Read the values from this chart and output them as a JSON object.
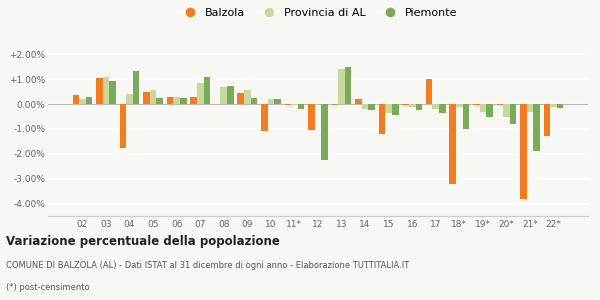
{
  "years": [
    "02",
    "03",
    "04",
    "05",
    "06",
    "07",
    "08",
    "09",
    "10",
    "11*",
    "12",
    "13",
    "14",
    "15",
    "16",
    "17",
    "18*",
    "19*",
    "20*",
    "21*",
    "22*"
  ],
  "balzola": [
    0.35,
    1.05,
    -1.75,
    0.5,
    0.3,
    0.3,
    0.0,
    0.45,
    -1.1,
    -0.05,
    -1.05,
    -0.05,
    0.2,
    -1.2,
    -0.05,
    1.0,
    -3.2,
    -0.05,
    -0.05,
    -3.8,
    -1.3
  ],
  "provincia": [
    0.2,
    1.1,
    0.4,
    0.55,
    0.3,
    0.85,
    0.7,
    0.55,
    0.2,
    -0.05,
    0.0,
    1.4,
    -0.2,
    -0.35,
    -0.1,
    -0.2,
    -0.1,
    -0.3,
    -0.5,
    -0.3,
    -0.1
  ],
  "piemonte": [
    0.3,
    0.95,
    1.35,
    0.25,
    0.25,
    1.1,
    0.75,
    0.25,
    0.2,
    -0.2,
    -2.25,
    1.5,
    -0.25,
    -0.45,
    -0.25,
    -0.35,
    -1.0,
    -0.5,
    -0.8,
    -1.9,
    -0.15
  ],
  "color_balzola": "#f47c20",
  "color_provincia": "#c8d9a0",
  "color_piemonte": "#7aaa5a",
  "title": "Variazione percentuale della popolazione",
  "subtitle": "COMUNE DI BALZOLA (AL) - Dati ISTAT al 31 dicembre di ogni anno - Elaborazione TUTTITALIA.IT",
  "footnote": "(*) post-censimento",
  "ylim": [
    -4.5,
    2.5
  ],
  "yticks": [
    -4.0,
    -3.0,
    -2.0,
    -1.0,
    0.0,
    1.0,
    2.0
  ],
  "ytick_labels": [
    "-4.00%",
    "-3.00%",
    "-2.00%",
    "-1.00%",
    "0.00%",
    "+1.00%",
    "+2.00%"
  ],
  "background_color": "#f7f7f3",
  "grid_color": "#ffffff"
}
